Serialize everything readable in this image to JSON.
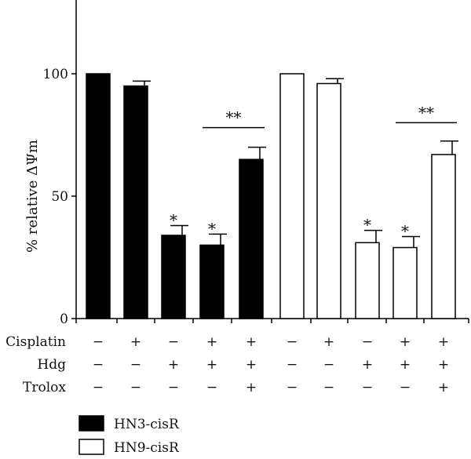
{
  "chart_data": {
    "type": "bar",
    "title": "",
    "ylabel": "% relative ΔΨm",
    "xlabel": "",
    "ylim": [
      0,
      130
    ],
    "yticks": [
      0,
      50,
      100
    ],
    "grid": false,
    "legend_position": "bottom-left",
    "series": [
      {
        "name": "HN3-cisR",
        "color": "#000000",
        "fill": "filled",
        "values": [
          100,
          95,
          34,
          30,
          65
        ],
        "errors": [
          0,
          2,
          4,
          4.5,
          5
        ],
        "significance": [
          "",
          "",
          "*",
          "*",
          ""
        ]
      },
      {
        "name": "HN9-cisR",
        "color": "#000000",
        "fill": "open",
        "values": [
          100,
          96,
          31,
          29,
          67
        ],
        "errors": [
          0,
          2,
          5,
          4.5,
          5.5
        ],
        "significance": [
          "",
          "",
          "*",
          "*",
          ""
        ]
      }
    ],
    "comparisons": [
      {
        "series": 0,
        "from": 3,
        "to": 4,
        "label": "**",
        "level": 78
      },
      {
        "series": 1,
        "from": 3,
        "to": 4,
        "label": "**",
        "level": 80
      }
    ],
    "treatments": [
      {
        "label": "Cisplatin",
        "signs": [
          "−",
          "+",
          "−",
          "+",
          "+"
        ]
      },
      {
        "label": "Hdg",
        "signs": [
          "−",
          "−",
          "+",
          "+",
          "+"
        ]
      },
      {
        "label": "Trolox",
        "signs": [
          "−",
          "−",
          "−",
          "−",
          "+"
        ]
      }
    ]
  }
}
